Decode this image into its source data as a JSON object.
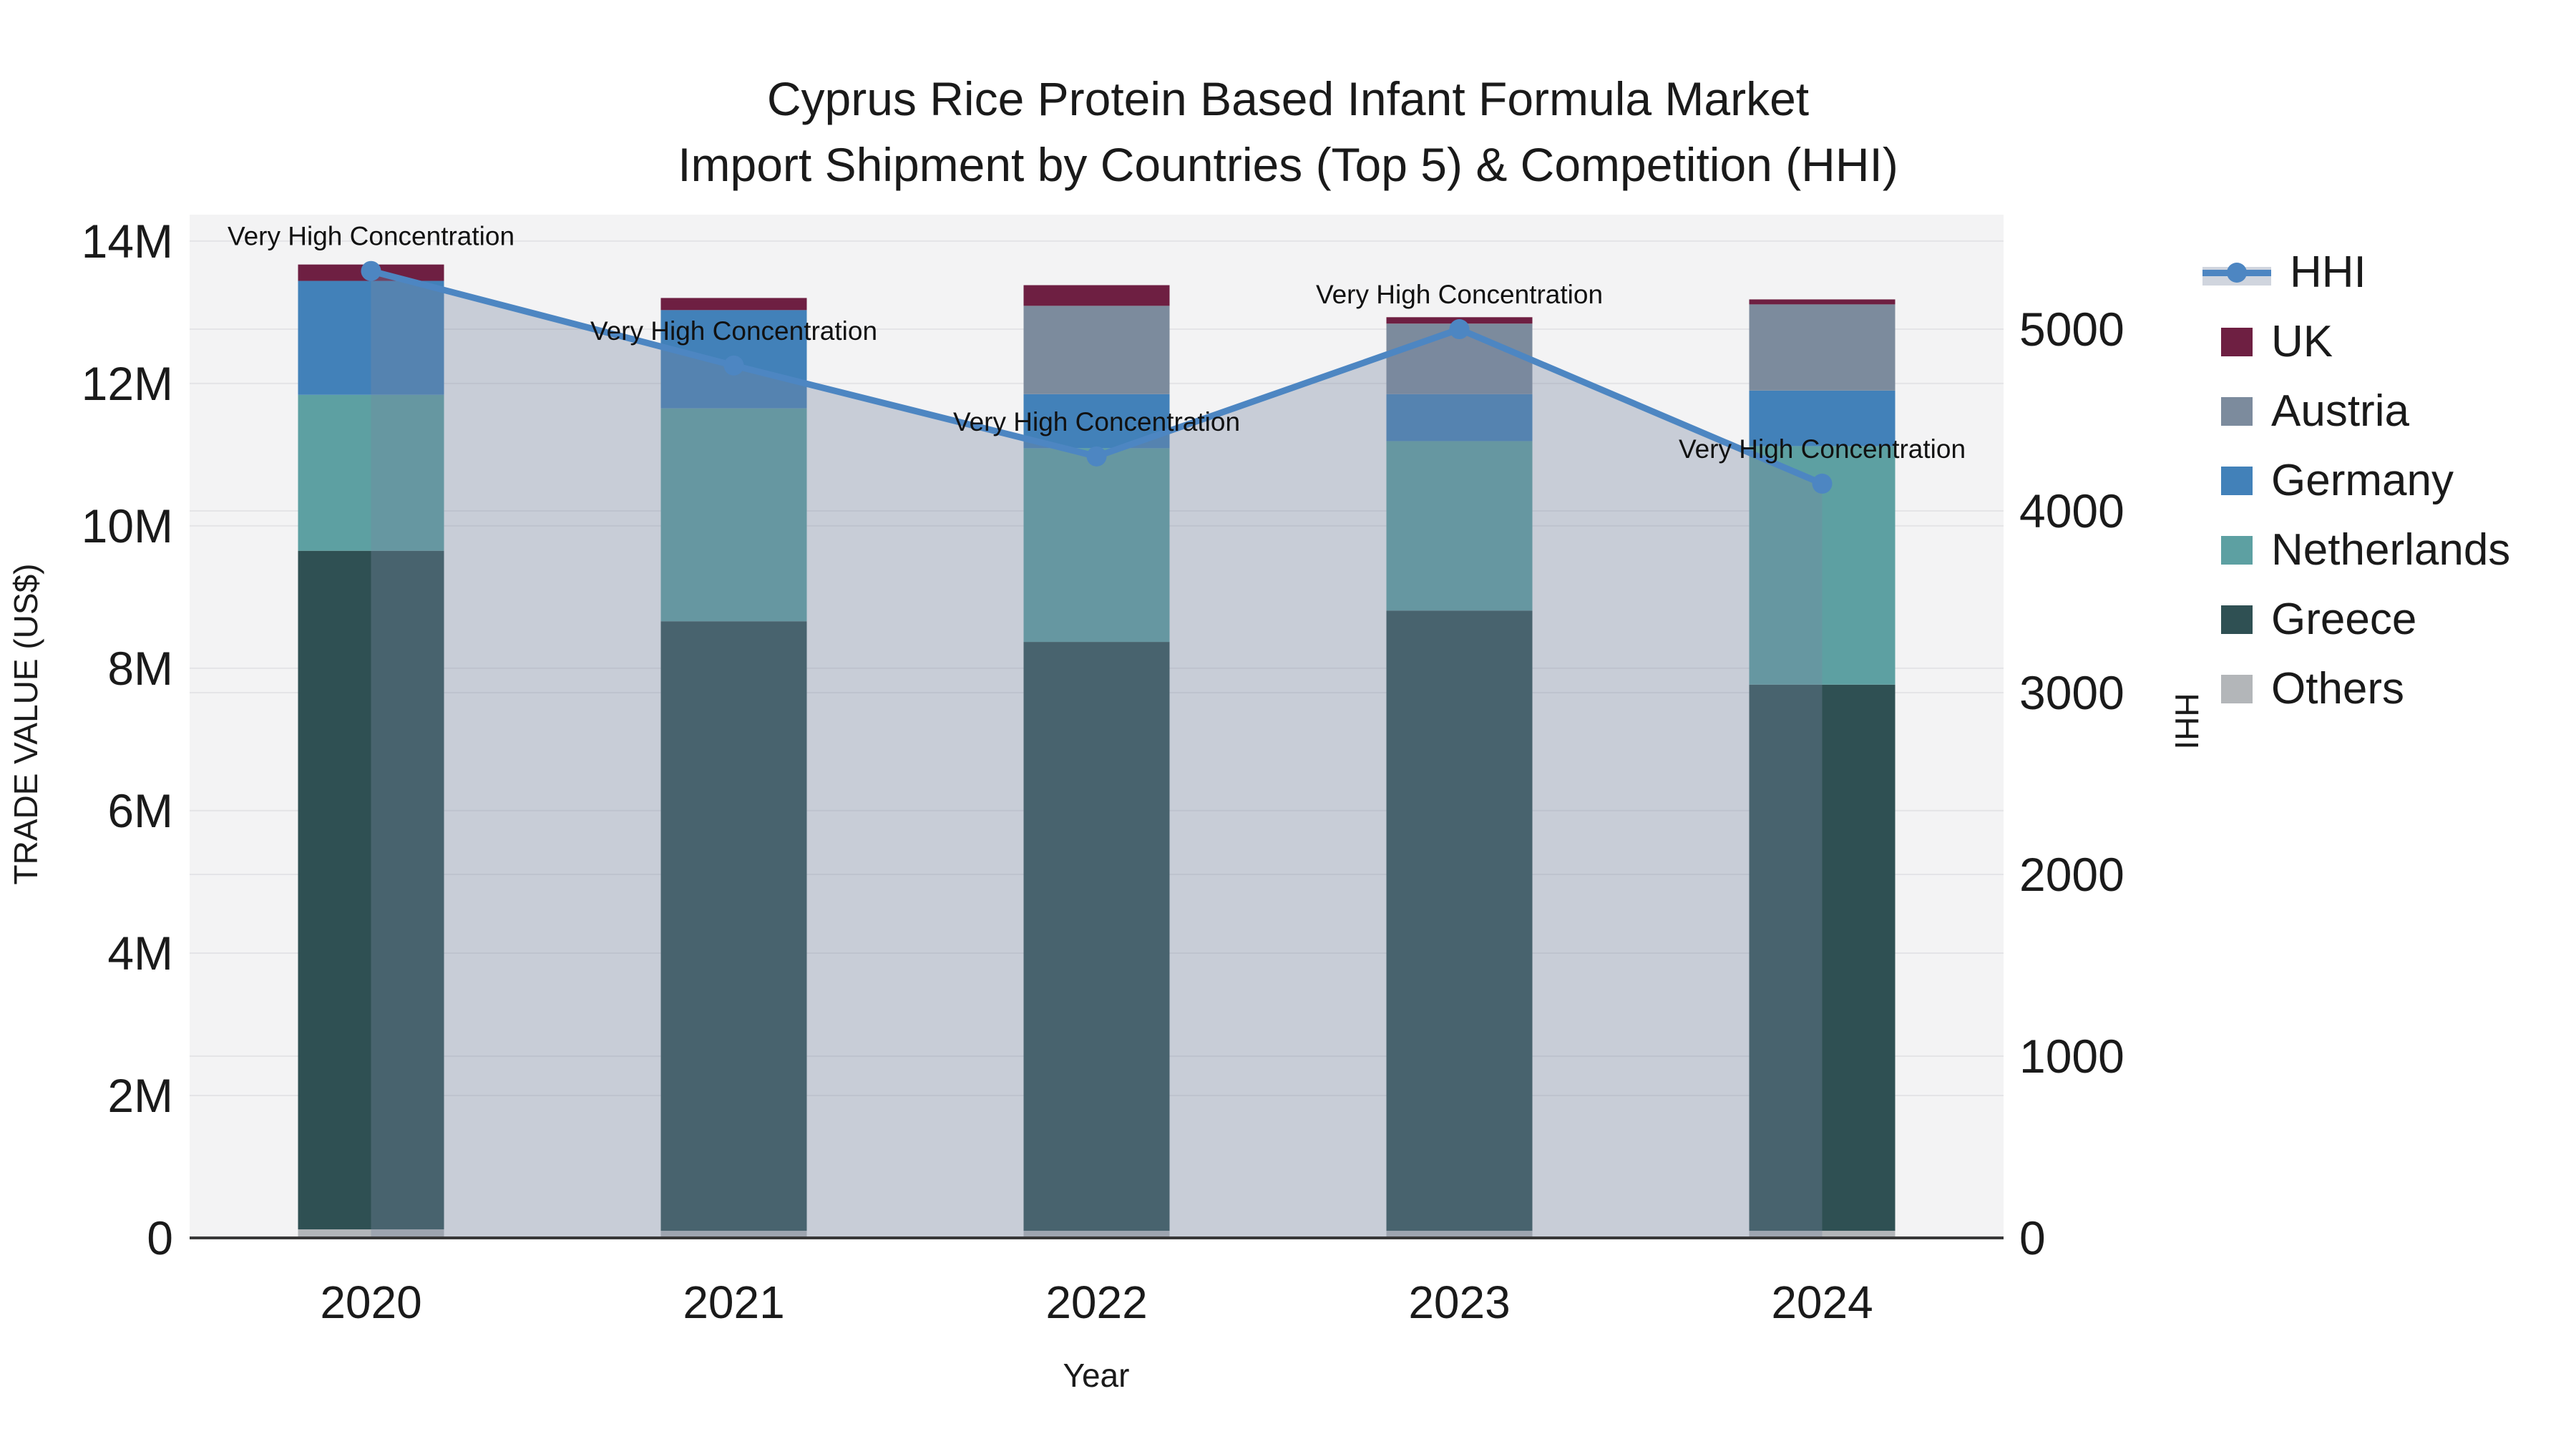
{
  "title": {
    "line1": "Cyprus Rice Protein Based Infant Formula Market",
    "line2": "Import Shipment by Countries (Top 5) & Competition (HHI)"
  },
  "axes": {
    "x_title": "Year",
    "y_left_title": "TRADE VALUE (US$)",
    "y_right_title": "HHI"
  },
  "legend": {
    "items": [
      {
        "label": "HHI",
        "type": "line",
        "color": "#4d86c2",
        "band_color": "#d0d5de"
      },
      {
        "label": "UK",
        "type": "swatch",
        "color": "#6e1f42"
      },
      {
        "label": "Austria",
        "type": "swatch",
        "color": "#7c8b9d"
      },
      {
        "label": "Germany",
        "type": "swatch",
        "color": "#4281b9"
      },
      {
        "label": "Netherlands",
        "type": "swatch",
        "color": "#5da0a2"
      },
      {
        "label": "Greece",
        "type": "swatch",
        "color": "#2f5053"
      },
      {
        "label": "Others",
        "type": "swatch",
        "color": "#b3b6b9"
      }
    ]
  },
  "chart_data": {
    "type": "stacked-bar with overlaid line+area (dual axis)",
    "categories": [
      "2020",
      "2021",
      "2022",
      "2023",
      "2024"
    ],
    "series": [
      {
        "name": "Others",
        "color": "#b3b6b9",
        "values": [
          120000,
          100000,
          100000,
          100000,
          100000
        ]
      },
      {
        "name": "Greece",
        "color": "#2f5053",
        "values": [
          9530000,
          8560000,
          8270000,
          8710000,
          7670000
        ]
      },
      {
        "name": "Netherlands",
        "color": "#5da0a2",
        "values": [
          2190000,
          2990000,
          2720000,
          2380000,
          3350000
        ]
      },
      {
        "name": "Germany",
        "color": "#4281b9",
        "values": [
          1600000,
          1380000,
          760000,
          660000,
          780000
        ]
      },
      {
        "name": "Austria",
        "color": "#7c8b9d",
        "values": [
          0,
          0,
          1240000,
          990000,
          1210000
        ]
      },
      {
        "name": "UK",
        "color": "#6e1f42",
        "values": [
          230000,
          170000,
          290000,
          90000,
          70000
        ]
      }
    ],
    "bar_totals": [
      13670000,
      13200000,
      13380000,
      12930000,
      13180000
    ],
    "hhi": {
      "name": "HHI",
      "line_color": "#4d86c2",
      "area_fill": "rgba(120,135,160,0.35)",
      "values": [
        5320,
        4800,
        4300,
        5000,
        4150
      ]
    },
    "annotation_text": "Very High Concentration",
    "annotations_per_point": [
      "Very High Concentration",
      "Very High Concentration",
      "Very High Concentration",
      "Very High Concentration",
      "Very High Concentration"
    ],
    "y_left": {
      "max": 14370000,
      "ticks": [
        {
          "value": 0,
          "label": "0"
        },
        {
          "value": 2000000,
          "label": "2M"
        },
        {
          "value": 4000000,
          "label": "4M"
        },
        {
          "value": 6000000,
          "label": "6M"
        },
        {
          "value": 8000000,
          "label": "8M"
        },
        {
          "value": 10000000,
          "label": "10M"
        },
        {
          "value": 12000000,
          "label": "12M"
        },
        {
          "value": 14000000,
          "label": "14M"
        }
      ]
    },
    "y_right": {
      "max": 5630,
      "ticks": [
        {
          "value": 0,
          "label": "0"
        },
        {
          "value": 1000,
          "label": "1000"
        },
        {
          "value": 2000,
          "label": "2000"
        },
        {
          "value": 3000,
          "label": "3000"
        },
        {
          "value": 4000,
          "label": "4000"
        },
        {
          "value": 5000,
          "label": "5000"
        }
      ]
    },
    "grid": true,
    "legend_position": "right"
  },
  "colors": {
    "plot_bg": "#f3f3f4",
    "gridline": "#e4e4e7",
    "axis_line": "#383838",
    "tick_text": "#1a1a1a",
    "annotation_text": "#111111"
  }
}
